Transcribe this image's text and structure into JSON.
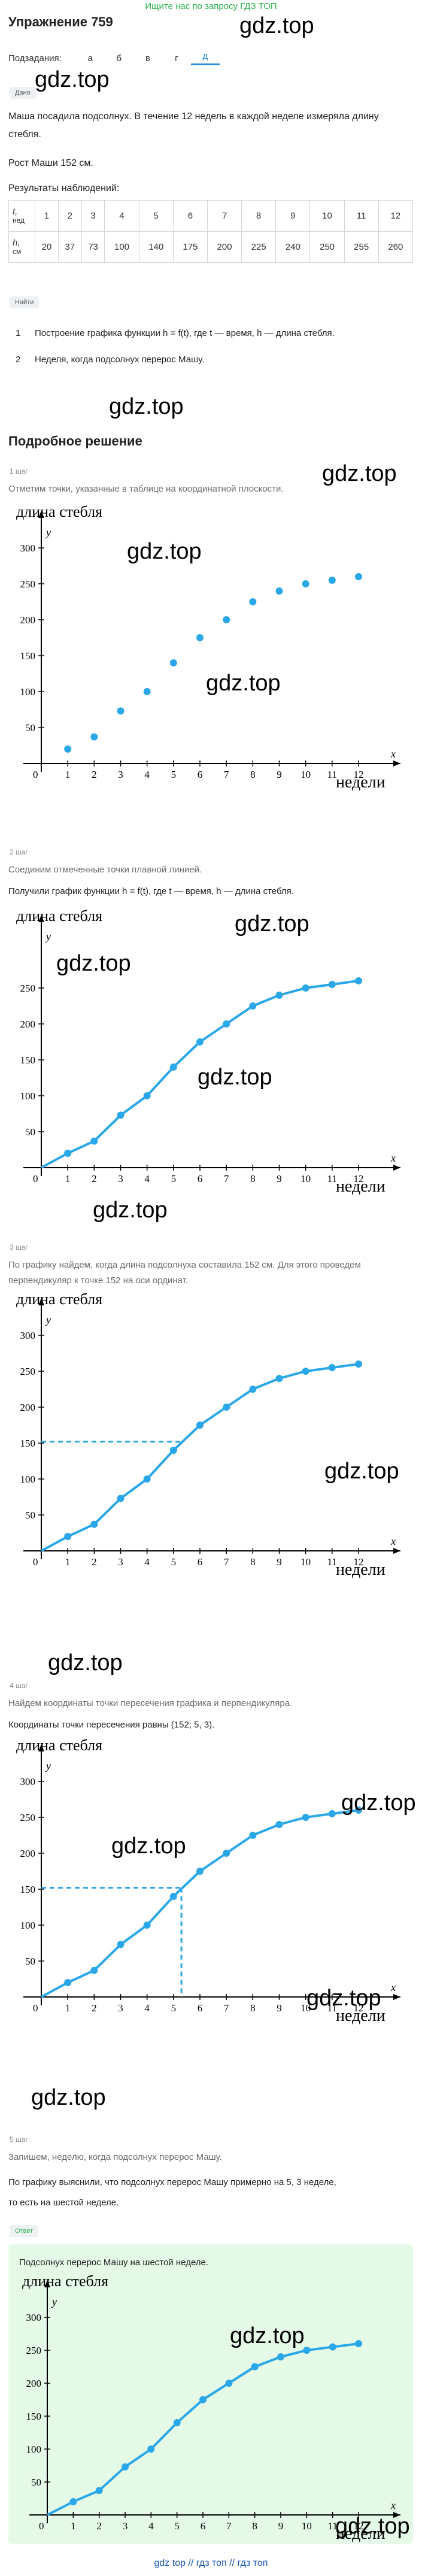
{
  "banner": "Ищите нас по запросу ГДЗ ТОП",
  "title": "Упражнение 759",
  "watermark": "gdz.top",
  "subtasks": {
    "label": "Подзадания:",
    "options": [
      "а",
      "б",
      "в",
      "г",
      "д"
    ],
    "active": 4
  },
  "given": {
    "badge": "Дано",
    "paragraph1": "Маша посадила подсолнух. В течение 12 недель в каждой неделе измеряла длину стебля.",
    "paragraph2": "Рост Маши 152 см.",
    "results_label": "Результаты наблюдений:",
    "table": {
      "row1_head": "t,",
      "row1_unit": "нед",
      "row2_head": "h,",
      "row2_unit": "см",
      "weeks": [
        "1",
        "2",
        "3",
        "4",
        "5",
        "6",
        "7",
        "8",
        "9",
        "10",
        "11",
        "12"
      ],
      "heights": [
        "20",
        "37",
        "73",
        "100",
        "140",
        "175",
        "200",
        "225",
        "240",
        "250",
        "255",
        "260"
      ]
    }
  },
  "find": {
    "badge": "Найти",
    "items": [
      {
        "num": "1",
        "text": "Построение графика функции h = f(t), где t — время, h — длина стебля."
      },
      {
        "num": "2",
        "text": "Неделя, когда подсолнух перерос Машу."
      }
    ]
  },
  "solution": {
    "title": "Подробное решение",
    "steps": [
      {
        "label": "1 шаг",
        "text": "Отметим точки, указанные в таблице на координатной плоскости."
      },
      {
        "label": "2 шаг",
        "line1": "Соединим отмеченные точки плавной линией.",
        "line2": "Получили график функции h = f(t), где t — время, h — длина стебля."
      },
      {
        "label": "3 шаг",
        "line1": "По графику найдем, когда длина подсолнуха составила 152 см. Для этого проведем",
        "line2": "перпендикуляр к точке 152 на оси ординат."
      },
      {
        "label": "4 шаг",
        "line1": "Найдем координаты точки пересечения графика и перпендикуляра.",
        "line2": "Координаты точки пересечения равны (152; 5, 3)."
      },
      {
        "label": "5 шаг",
        "line1": "Запишем, неделю, когда подсолнух перерос Машу.",
        "line2": "По графику выяснили, что подсолнух перерос Машу примерно на 5, 3 неделе,",
        "line3": "то есть на шестой неделе."
      }
    ]
  },
  "answer": {
    "badge": "Ответ",
    "text": "Подсолнух перерос Машу на шестой неделе."
  },
  "footer": "gdz top  //  гдз топ  //  гдз топ",
  "chart_labels": {
    "ylabel": "длина стебля",
    "xlabel": "недели",
    "yaxis": "y",
    "xaxis": "x",
    "origin": "0"
  },
  "chart_data": [
    {
      "type": "scatter",
      "x": [
        1,
        2,
        3,
        4,
        5,
        6,
        7,
        8,
        9,
        10,
        11,
        12
      ],
      "y": [
        20,
        37,
        73,
        100,
        140,
        175,
        200,
        225,
        240,
        250,
        255,
        260
      ],
      "ylabel": "длина стебля",
      "xlabel": "недели",
      "ylim": [
        0,
        300
      ],
      "xlim": [
        0,
        12
      ],
      "yticks": [
        50,
        100,
        150,
        200,
        250,
        300
      ],
      "xticks": [
        1,
        2,
        3,
        4,
        5,
        6,
        7,
        8,
        9,
        10,
        11,
        12
      ]
    },
    {
      "type": "line",
      "x": [
        1,
        2,
        3,
        4,
        5,
        6,
        7,
        8,
        9,
        10,
        11,
        12
      ],
      "y": [
        20,
        37,
        73,
        100,
        140,
        175,
        200,
        225,
        240,
        250,
        255,
        260
      ],
      "ylabel": "длина стебля",
      "xlabel": "недели",
      "ylim": [
        0,
        300
      ],
      "xlim": [
        0,
        12
      ],
      "yticks": [
        50,
        100,
        150,
        200,
        250
      ],
      "xticks": [
        1,
        2,
        3,
        4,
        5,
        6,
        7,
        8,
        9,
        10,
        11,
        12
      ]
    },
    {
      "type": "line",
      "x": [
        1,
        2,
        3,
        4,
        5,
        6,
        7,
        8,
        9,
        10,
        11,
        12
      ],
      "y": [
        20,
        37,
        73,
        100,
        140,
        175,
        200,
        225,
        240,
        250,
        255,
        260
      ],
      "ylabel": "длина стебля",
      "xlabel": "недели",
      "ylim": [
        0,
        300
      ],
      "xlim": [
        0,
        12
      ],
      "yticks": [
        50,
        100,
        150,
        200,
        250,
        300
      ],
      "xticks": [
        1,
        2,
        3,
        4,
        5,
        6,
        7,
        8,
        9,
        10,
        11,
        12
      ],
      "annotations": [
        {
          "type": "hline",
          "y": 152,
          "to_x": 5.3
        }
      ]
    },
    {
      "type": "line",
      "x": [
        1,
        2,
        3,
        4,
        5,
        6,
        7,
        8,
        9,
        10,
        11,
        12
      ],
      "y": [
        20,
        37,
        73,
        100,
        140,
        175,
        200,
        225,
        240,
        250,
        255,
        260
      ],
      "ylabel": "длина стебля",
      "xlabel": "недели",
      "ylim": [
        0,
        300
      ],
      "xlim": [
        0,
        12
      ],
      "yticks": [
        50,
        100,
        150,
        200,
        250,
        300
      ],
      "xticks": [
        1,
        2,
        3,
        4,
        5,
        6,
        7,
        8,
        9,
        10,
        11,
        12
      ],
      "annotations": [
        {
          "type": "hline",
          "y": 152,
          "to_x": 5.3
        },
        {
          "type": "vline",
          "x": 5.3,
          "from_y": 152
        }
      ]
    },
    {
      "type": "line",
      "x": [
        1,
        2,
        3,
        4,
        5,
        6,
        7,
        8,
        9,
        10,
        11,
        12
      ],
      "y": [
        20,
        37,
        73,
        100,
        140,
        175,
        200,
        225,
        240,
        250,
        255,
        260
      ],
      "ylabel": "длина стебля",
      "xlabel": "недели",
      "ylim": [
        0,
        300
      ],
      "xlim": [
        0,
        12
      ],
      "yticks": [
        50,
        100,
        150,
        200,
        250,
        300
      ],
      "xticks": [
        1,
        2,
        3,
        4,
        5,
        6,
        7,
        8,
        9,
        10,
        11,
        12
      ]
    }
  ]
}
